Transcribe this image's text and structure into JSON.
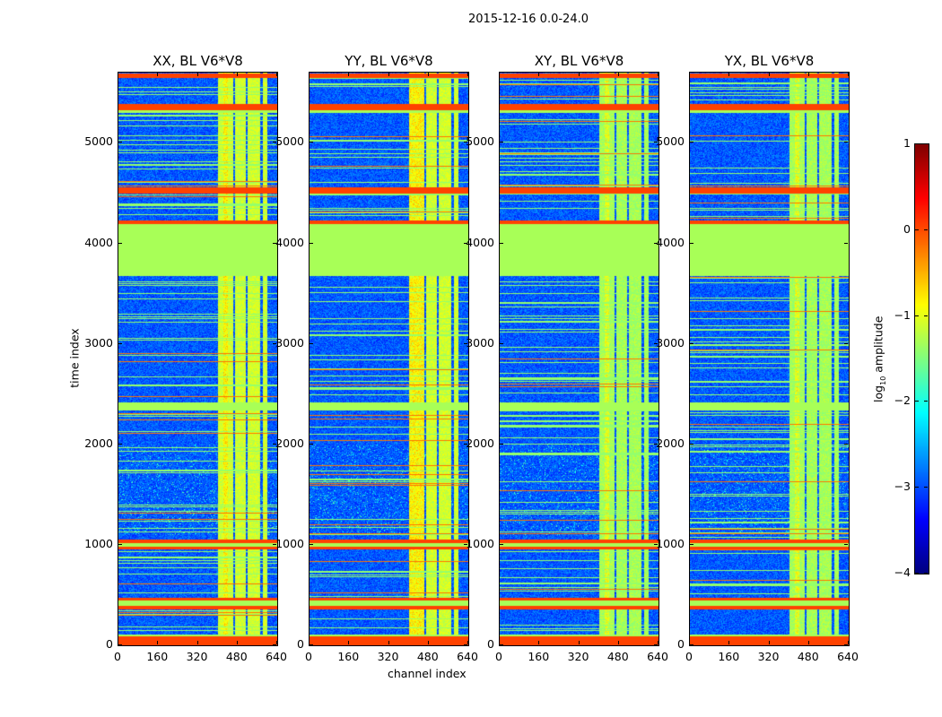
{
  "chart_data": {
    "type": "heatmap",
    "title": "2015-12-16 0.0-24.0",
    "xlabel": "channel index",
    "ylabel": "time index",
    "xlim": [
      0,
      640
    ],
    "ylim": [
      0,
      5700
    ],
    "xticks": [
      "0",
      "160",
      "320",
      "480",
      "640"
    ],
    "yticks": [
      "0",
      "1000",
      "2000",
      "3000",
      "4000",
      "5000"
    ],
    "panels": [
      {
        "title": "XX, BL V6*V8",
        "seed": 11
      },
      {
        "title": "YY, BL V6*V8",
        "seed": 23
      },
      {
        "title": "XY, BL V6*V8",
        "seed": 37
      },
      {
        "title": "YX, BL V6*V8",
        "seed": 51
      }
    ],
    "colorbar": {
      "label_prefix": "log",
      "label_sub": "10",
      "label_suffix": " amplitude",
      "range": [
        -4,
        1
      ],
      "ticks": [
        "1",
        "0",
        "−1",
        "−2",
        "−3",
        "−4"
      ],
      "colormap": "jet"
    },
    "background_log_amplitude": -3.0,
    "flagged_bands_orange": [
      [
        0,
        90
      ],
      [
        360,
        400
      ],
      [
        450,
        480
      ],
      [
        960,
        990
      ],
      [
        1020,
        1060
      ],
      [
        4200,
        4230
      ],
      [
        4500,
        4560
      ],
      [
        5330,
        5390
      ],
      [
        5650,
        5700
      ]
    ],
    "flagged_bands_green": [
      [
        90,
        110
      ],
      [
        400,
        450
      ],
      [
        990,
        1020
      ],
      [
        2340,
        2420
      ],
      [
        3680,
        4170
      ],
      [
        4170,
        4200
      ],
      [
        5300,
        5330
      ]
    ],
    "rfi_channel_ranges": [
      [
        400,
        460
      ],
      [
        470,
        510
      ],
      [
        520,
        570
      ],
      [
        580,
        600
      ]
    ]
  }
}
